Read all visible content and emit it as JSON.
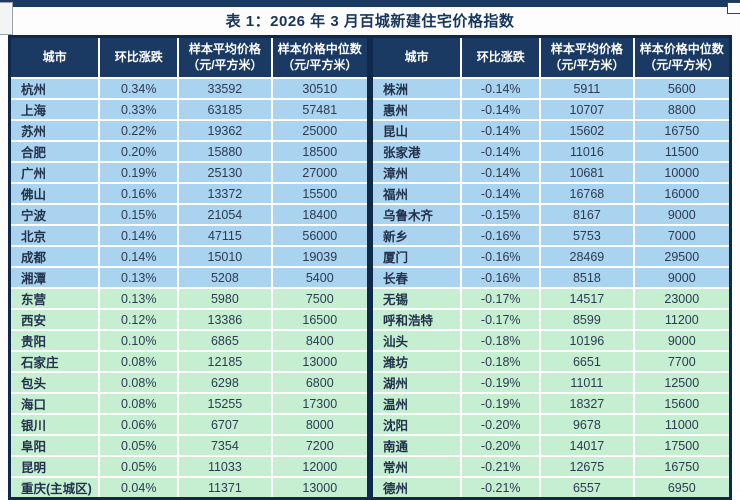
{
  "title": "表 1：2026 年 3 月百城新建住宅价格指数",
  "columns": [
    "城市",
    "环比涨跌",
    "样本平均价格\n（元/平方米）",
    "样本价格中位数\n（元/平方米）"
  ],
  "colors": {
    "top_strip": "#1b3a63",
    "header_bg": "#1b3a63",
    "header_text": "#ffffff",
    "row_positive_bg": "#a9d3ef",
    "row_secondary_bg": "#c5efd0",
    "table_border": "#10284a",
    "title_text": "#17365d",
    "cell_text": "#2c3a52"
  },
  "tables": [
    {
      "name": "left",
      "rows": [
        {
          "city": "杭州",
          "change": "0.34%",
          "avg_price": "33592",
          "median_price": "30510",
          "tone": "blue"
        },
        {
          "city": "上海",
          "change": "0.33%",
          "avg_price": "63185",
          "median_price": "57481",
          "tone": "blue"
        },
        {
          "city": "苏州",
          "change": "0.22%",
          "avg_price": "19362",
          "median_price": "25000",
          "tone": "blue"
        },
        {
          "city": "合肥",
          "change": "0.20%",
          "avg_price": "15880",
          "median_price": "18500",
          "tone": "blue"
        },
        {
          "city": "广州",
          "change": "0.19%",
          "avg_price": "25130",
          "median_price": "27000",
          "tone": "blue"
        },
        {
          "city": "佛山",
          "change": "0.16%",
          "avg_price": "13372",
          "median_price": "15500",
          "tone": "blue"
        },
        {
          "city": "宁波",
          "change": "0.15%",
          "avg_price": "21054",
          "median_price": "18400",
          "tone": "blue"
        },
        {
          "city": "北京",
          "change": "0.14%",
          "avg_price": "47115",
          "median_price": "56000",
          "tone": "blue"
        },
        {
          "city": "成都",
          "change": "0.14%",
          "avg_price": "15010",
          "median_price": "19039",
          "tone": "blue"
        },
        {
          "city": "湘潭",
          "change": "0.13%",
          "avg_price": "5208",
          "median_price": "5400",
          "tone": "blue"
        },
        {
          "city": "东营",
          "change": "0.13%",
          "avg_price": "5980",
          "median_price": "7500",
          "tone": "green"
        },
        {
          "city": "西安",
          "change": "0.12%",
          "avg_price": "13386",
          "median_price": "16500",
          "tone": "green"
        },
        {
          "city": "贵阳",
          "change": "0.10%",
          "avg_price": "6865",
          "median_price": "8400",
          "tone": "green"
        },
        {
          "city": "石家庄",
          "change": "0.08%",
          "avg_price": "12185",
          "median_price": "13000",
          "tone": "green"
        },
        {
          "city": "包头",
          "change": "0.08%",
          "avg_price": "6298",
          "median_price": "6800",
          "tone": "green"
        },
        {
          "city": "海口",
          "change": "0.08%",
          "avg_price": "15255",
          "median_price": "17300",
          "tone": "green"
        },
        {
          "city": "银川",
          "change": "0.06%",
          "avg_price": "6707",
          "median_price": "8000",
          "tone": "green"
        },
        {
          "city": "阜阳",
          "change": "0.05%",
          "avg_price": "7354",
          "median_price": "7200",
          "tone": "green"
        },
        {
          "city": "昆明",
          "change": "0.05%",
          "avg_price": "11033",
          "median_price": "12000",
          "tone": "green"
        },
        {
          "city": "重庆(主城区)",
          "change": "0.04%",
          "avg_price": "11371",
          "median_price": "13000",
          "tone": "green"
        }
      ]
    },
    {
      "name": "right",
      "rows": [
        {
          "city": "株洲",
          "change": "-0.14%",
          "avg_price": "5911",
          "median_price": "5600",
          "tone": "blue"
        },
        {
          "city": "惠州",
          "change": "-0.14%",
          "avg_price": "10707",
          "median_price": "8800",
          "tone": "blue"
        },
        {
          "city": "昆山",
          "change": "-0.14%",
          "avg_price": "15602",
          "median_price": "16750",
          "tone": "blue"
        },
        {
          "city": "张家港",
          "change": "-0.14%",
          "avg_price": "11016",
          "median_price": "11500",
          "tone": "blue"
        },
        {
          "city": "漳州",
          "change": "-0.14%",
          "avg_price": "10681",
          "median_price": "10000",
          "tone": "blue"
        },
        {
          "city": "福州",
          "change": "-0.14%",
          "avg_price": "16768",
          "median_price": "16000",
          "tone": "blue"
        },
        {
          "city": "乌鲁木齐",
          "change": "-0.15%",
          "avg_price": "8167",
          "median_price": "9000",
          "tone": "blue"
        },
        {
          "city": "新乡",
          "change": "-0.16%",
          "avg_price": "5753",
          "median_price": "7000",
          "tone": "blue"
        },
        {
          "city": "厦门",
          "change": "-0.16%",
          "avg_price": "28469",
          "median_price": "29500",
          "tone": "blue"
        },
        {
          "city": "长春",
          "change": "-0.16%",
          "avg_price": "8518",
          "median_price": "9000",
          "tone": "blue"
        },
        {
          "city": "无锡",
          "change": "-0.17%",
          "avg_price": "14517",
          "median_price": "23000",
          "tone": "green"
        },
        {
          "city": "呼和浩特",
          "change": "-0.17%",
          "avg_price": "8599",
          "median_price": "11200",
          "tone": "green"
        },
        {
          "city": "汕头",
          "change": "-0.18%",
          "avg_price": "10196",
          "median_price": "9000",
          "tone": "green"
        },
        {
          "city": "潍坊",
          "change": "-0.18%",
          "avg_price": "6651",
          "median_price": "7700",
          "tone": "green"
        },
        {
          "city": "湖州",
          "change": "-0.19%",
          "avg_price": "11011",
          "median_price": "12500",
          "tone": "green"
        },
        {
          "city": "温州",
          "change": "-0.19%",
          "avg_price": "18327",
          "median_price": "15600",
          "tone": "green"
        },
        {
          "city": "沈阳",
          "change": "-0.20%",
          "avg_price": "9678",
          "median_price": "11000",
          "tone": "green"
        },
        {
          "city": "南通",
          "change": "-0.20%",
          "avg_price": "14017",
          "median_price": "17500",
          "tone": "green"
        },
        {
          "city": "常州",
          "change": "-0.21%",
          "avg_price": "12675",
          "median_price": "16750",
          "tone": "green"
        },
        {
          "city": "德州",
          "change": "-0.21%",
          "avg_price": "6557",
          "median_price": "6950",
          "tone": "green"
        }
      ]
    }
  ]
}
